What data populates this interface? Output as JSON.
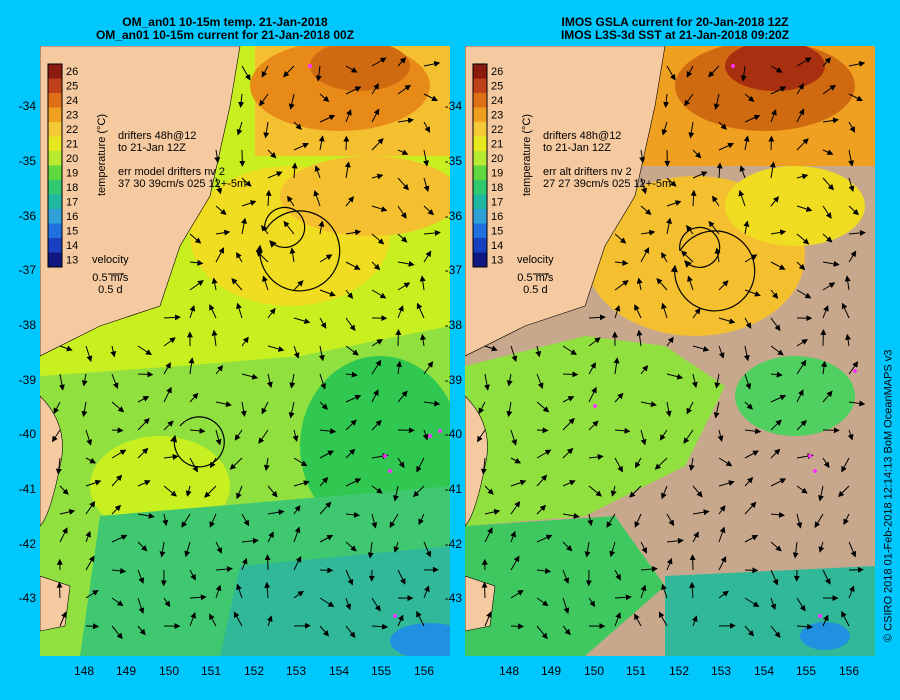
{
  "left_panel": {
    "title_line1": "OM_an01 10-15m temp. 21-Jan-2018",
    "title_line2": "OM_an01 10-15m current for 21-Jan-2018 00Z",
    "drifter_line1": "drifters 48h@12",
    "drifter_line2": "to 21-Jan 12Z",
    "err_line1": "err model drifters nv 2",
    "err_line2": "37 30 39cm/s 025 12+-5m",
    "velocity_label": "velocity",
    "velocity_scale": "0.5 m/s",
    "velocity_time": "0.5 d"
  },
  "right_panel": {
    "title_line1": "IMOS GSLA current for 20-Jan-2018 12Z",
    "title_line2": "IMOS L3S-3d SST at 21-Jan-2018 09:20Z",
    "drifter_line1": "drifters 48h@12",
    "drifter_line2": "to 21-Jan 12Z",
    "err_line1": "err alt drifters nv 2",
    "err_line2": "27 27 39cm/s 025 12+-5m",
    "velocity_label": "velocity",
    "velocity_scale": "0.5 m/s",
    "velocity_time": "0.5 d"
  },
  "colorbar": {
    "label": "temperature (°C)",
    "ticks": [
      "26",
      "25",
      "24",
      "23",
      "22",
      "21",
      "20",
      "19",
      "18",
      "17",
      "16",
      "15",
      "14",
      "13"
    ]
  },
  "axes": {
    "lat_ticks": [
      "-34",
      "-35",
      "-36",
      "-37",
      "-38",
      "-39",
      "-40",
      "-41",
      "-42",
      "-43"
    ],
    "lon_ticks": [
      "148",
      "149",
      "150",
      "151",
      "152",
      "153",
      "154",
      "155",
      "156"
    ]
  },
  "credit": "© CSIRO 2018   01-Feb-2018 12:14:13 BoM OceanMAPS v3",
  "colors": {
    "background": "#00c8ff",
    "land": "#f6caa0",
    "no_data": "#c8a88c"
  }
}
